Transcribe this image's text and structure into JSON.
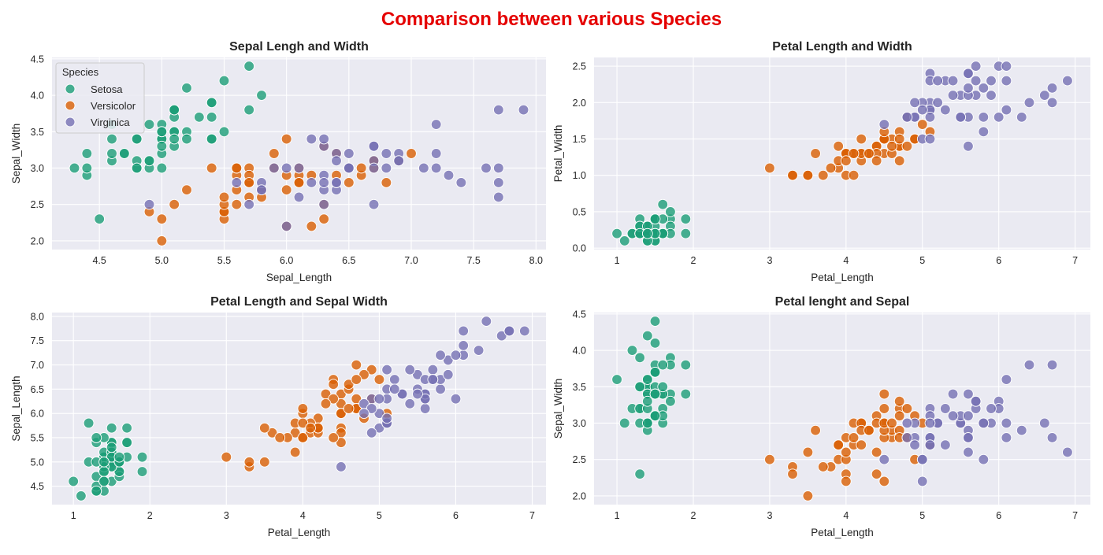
{
  "figure": {
    "title": "Comparison between various Species",
    "title_color": "#e50000",
    "background": "#ffffff",
    "axes_facecolor": "#eaeaf2",
    "grid_color": "#ffffff",
    "species": [
      "Setosa",
      "Versicolor",
      "Virginica"
    ],
    "species_colors": {
      "Setosa": "#1b9e77",
      "Versicolor": "#d95f02",
      "Virginica": "#7570b3"
    },
    "legend_title": "Species"
  },
  "chart_data": [
    {
      "type": "scatter",
      "title": "Sepal Lengh and Width",
      "xlabel": "Sepal_Length",
      "ylabel": "Sepal_Width",
      "x_field": "sl",
      "y_field": "sw",
      "xlim": [
        4.12,
        8.08
      ],
      "ylim": [
        1.88,
        4.52
      ],
      "xticks": [
        "4.5",
        "5.0",
        "5.5",
        "6.0",
        "6.5",
        "7.0",
        "7.5",
        "8.0"
      ],
      "yticks": [
        "2.0",
        "2.5",
        "3.0",
        "3.5",
        "4.0",
        "4.5"
      ],
      "legend": true,
      "legend_position": "upper-left",
      "grid": true
    },
    {
      "type": "scatter",
      "title": "Petal Length and Width",
      "xlabel": "Petal_Length",
      "ylabel": "Petal_Width",
      "x_field": "pl",
      "y_field": "pw",
      "xlim": [
        0.7,
        7.2
      ],
      "ylim": [
        -0.02,
        2.62
      ],
      "xticks": [
        "1",
        "2",
        "3",
        "4",
        "5",
        "6",
        "7"
      ],
      "yticks": [
        "0.0",
        "0.5",
        "1.0",
        "1.5",
        "2.0",
        "2.5"
      ],
      "legend": false,
      "grid": true
    },
    {
      "type": "scatter",
      "title": "Petal Length and Sepal Width",
      "xlabel": "Petal_Length",
      "ylabel": "Sepal_Length",
      "x_field": "pl",
      "y_field": "sl",
      "xlim": [
        0.72,
        7.18
      ],
      "ylim": [
        4.12,
        8.08
      ],
      "xticks": [
        "1",
        "2",
        "3",
        "4",
        "5",
        "6",
        "7"
      ],
      "yticks": [
        "4.5",
        "5.0",
        "5.5",
        "6.0",
        "6.5",
        "7.0",
        "7.5",
        "8.0"
      ],
      "legend": false,
      "grid": true
    },
    {
      "type": "scatter",
      "title": "Petal lenght and Sepal",
      "xlabel": "Petal_Length",
      "ylabel": "Sepal_Width",
      "x_field": "pl",
      "y_field": "sw",
      "xlim": [
        0.7,
        7.2
      ],
      "ylim": [
        1.88,
        4.52
      ],
      "xticks": [
        "1",
        "2",
        "3",
        "4",
        "5",
        "6",
        "7"
      ],
      "yticks": [
        "2.0",
        "2.5",
        "3.0",
        "3.5",
        "4.0",
        "4.5"
      ],
      "legend": false,
      "grid": true
    }
  ],
  "iris": {
    "fields": [
      "sl",
      "sw",
      "pl",
      "pw"
    ],
    "Setosa": [
      [
        5.1,
        3.5,
        1.4,
        0.2
      ],
      [
        4.9,
        3.0,
        1.4,
        0.2
      ],
      [
        4.7,
        3.2,
        1.3,
        0.2
      ],
      [
        4.6,
        3.1,
        1.5,
        0.2
      ],
      [
        5.0,
        3.6,
        1.4,
        0.2
      ],
      [
        5.4,
        3.9,
        1.7,
        0.4
      ],
      [
        4.6,
        3.4,
        1.4,
        0.3
      ],
      [
        5.0,
        3.4,
        1.5,
        0.2
      ],
      [
        4.4,
        2.9,
        1.4,
        0.2
      ],
      [
        4.9,
        3.1,
        1.5,
        0.1
      ],
      [
        5.4,
        3.7,
        1.5,
        0.2
      ],
      [
        4.8,
        3.4,
        1.6,
        0.2
      ],
      [
        4.8,
        3.0,
        1.4,
        0.1
      ],
      [
        4.3,
        3.0,
        1.1,
        0.1
      ],
      [
        5.8,
        4.0,
        1.2,
        0.2
      ],
      [
        5.7,
        4.4,
        1.5,
        0.4
      ],
      [
        5.4,
        3.9,
        1.3,
        0.4
      ],
      [
        5.1,
        3.5,
        1.4,
        0.3
      ],
      [
        5.7,
        3.8,
        1.7,
        0.3
      ],
      [
        5.1,
        3.8,
        1.5,
        0.3
      ],
      [
        5.4,
        3.4,
        1.7,
        0.2
      ],
      [
        5.1,
        3.7,
        1.5,
        0.4
      ],
      [
        4.6,
        3.6,
        1.0,
        0.2
      ],
      [
        5.1,
        3.3,
        1.7,
        0.5
      ],
      [
        4.8,
        3.4,
        1.9,
        0.2
      ],
      [
        5.0,
        3.0,
        1.6,
        0.2
      ],
      [
        5.0,
        3.4,
        1.6,
        0.4
      ],
      [
        5.2,
        3.5,
        1.5,
        0.2
      ],
      [
        5.2,
        3.4,
        1.4,
        0.2
      ],
      [
        4.7,
        3.2,
        1.6,
        0.2
      ],
      [
        4.8,
        3.1,
        1.6,
        0.2
      ],
      [
        5.4,
        3.4,
        1.5,
        0.4
      ],
      [
        5.2,
        4.1,
        1.5,
        0.1
      ],
      [
        5.5,
        4.2,
        1.4,
        0.2
      ],
      [
        4.9,
        3.1,
        1.5,
        0.2
      ],
      [
        5.0,
        3.2,
        1.2,
        0.2
      ],
      [
        5.5,
        3.5,
        1.3,
        0.2
      ],
      [
        4.9,
        3.6,
        1.4,
        0.1
      ],
      [
        4.4,
        3.0,
        1.3,
        0.2
      ],
      [
        5.1,
        3.4,
        1.5,
        0.2
      ],
      [
        5.0,
        3.5,
        1.3,
        0.3
      ],
      [
        4.5,
        2.3,
        1.3,
        0.3
      ],
      [
        4.4,
        3.2,
        1.3,
        0.2
      ],
      [
        5.0,
        3.5,
        1.6,
        0.6
      ],
      [
        5.1,
        3.8,
        1.9,
        0.4
      ],
      [
        4.8,
        3.0,
        1.4,
        0.3
      ],
      [
        5.1,
        3.8,
        1.6,
        0.2
      ],
      [
        4.6,
        3.2,
        1.4,
        0.2
      ],
      [
        5.3,
        3.7,
        1.5,
        0.2
      ],
      [
        5.0,
        3.3,
        1.4,
        0.2
      ]
    ],
    "Versicolor": [
      [
        7.0,
        3.2,
        4.7,
        1.4
      ],
      [
        6.4,
        3.2,
        4.5,
        1.5
      ],
      [
        6.9,
        3.1,
        4.9,
        1.5
      ],
      [
        5.5,
        2.3,
        4.0,
        1.3
      ],
      [
        6.5,
        2.8,
        4.6,
        1.5
      ],
      [
        5.7,
        2.8,
        4.5,
        1.3
      ],
      [
        6.3,
        3.3,
        4.7,
        1.6
      ],
      [
        4.9,
        2.4,
        3.3,
        1.0
      ],
      [
        6.6,
        2.9,
        4.6,
        1.3
      ],
      [
        5.2,
        2.7,
        3.9,
        1.4
      ],
      [
        5.0,
        2.0,
        3.5,
        1.0
      ],
      [
        5.9,
        3.0,
        4.2,
        1.5
      ],
      [
        6.0,
        2.2,
        4.0,
        1.0
      ],
      [
        6.1,
        2.9,
        4.7,
        1.4
      ],
      [
        5.6,
        2.9,
        3.6,
        1.3
      ],
      [
        6.7,
        3.1,
        4.4,
        1.4
      ],
      [
        5.6,
        3.0,
        4.5,
        1.5
      ],
      [
        5.8,
        2.7,
        4.1,
        1.0
      ],
      [
        6.2,
        2.2,
        4.5,
        1.5
      ],
      [
        5.6,
        2.5,
        3.9,
        1.1
      ],
      [
        5.9,
        3.2,
        4.8,
        1.8
      ],
      [
        6.1,
        2.8,
        4.0,
        1.3
      ],
      [
        6.3,
        2.5,
        4.9,
        1.5
      ],
      [
        6.1,
        2.8,
        4.7,
        1.2
      ],
      [
        6.4,
        2.9,
        4.3,
        1.3
      ],
      [
        6.6,
        3.0,
        4.4,
        1.4
      ],
      [
        6.8,
        2.8,
        4.8,
        1.4
      ],
      [
        6.7,
        3.0,
        5.0,
        1.7
      ],
      [
        6.0,
        2.9,
        4.5,
        1.5
      ],
      [
        5.7,
        2.6,
        3.5,
        1.0
      ],
      [
        5.5,
        2.4,
        3.8,
        1.1
      ],
      [
        5.5,
        2.4,
        3.7,
        1.0
      ],
      [
        5.8,
        2.7,
        3.9,
        1.2
      ],
      [
        6.0,
        2.7,
        5.1,
        1.6
      ],
      [
        5.4,
        3.0,
        4.5,
        1.5
      ],
      [
        6.0,
        3.4,
        4.5,
        1.6
      ],
      [
        6.7,
        3.1,
        4.7,
        1.5
      ],
      [
        6.3,
        2.3,
        4.4,
        1.3
      ],
      [
        5.6,
        3.0,
        4.1,
        1.3
      ],
      [
        5.5,
        2.5,
        4.0,
        1.3
      ],
      [
        5.5,
        2.6,
        4.4,
        1.2
      ],
      [
        6.1,
        3.0,
        4.6,
        1.4
      ],
      [
        5.8,
        2.6,
        4.0,
        1.2
      ],
      [
        5.0,
        2.3,
        3.3,
        1.0
      ],
      [
        5.6,
        2.7,
        4.2,
        1.3
      ],
      [
        5.7,
        3.0,
        4.2,
        1.2
      ],
      [
        5.7,
        2.9,
        4.2,
        1.3
      ],
      [
        6.2,
        2.9,
        4.3,
        1.3
      ],
      [
        5.1,
        2.5,
        3.0,
        1.1
      ],
      [
        5.7,
        2.8,
        4.1,
        1.3
      ]
    ],
    "Virginica": [
      [
        6.3,
        3.3,
        6.0,
        2.5
      ],
      [
        5.8,
        2.7,
        5.1,
        1.9
      ],
      [
        7.1,
        3.0,
        5.9,
        2.1
      ],
      [
        6.3,
        2.9,
        5.6,
        1.8
      ],
      [
        6.5,
        3.0,
        5.8,
        2.2
      ],
      [
        7.6,
        3.0,
        6.6,
        2.1
      ],
      [
        4.9,
        2.5,
        4.5,
        1.7
      ],
      [
        7.3,
        2.9,
        6.3,
        1.8
      ],
      [
        6.7,
        2.5,
        5.8,
        1.8
      ],
      [
        7.2,
        3.6,
        6.1,
        2.5
      ],
      [
        6.5,
        3.2,
        5.1,
        2.0
      ],
      [
        6.4,
        2.7,
        5.3,
        1.9
      ],
      [
        6.8,
        3.0,
        5.5,
        2.1
      ],
      [
        5.7,
        2.5,
        5.0,
        2.0
      ],
      [
        5.8,
        2.8,
        5.1,
        2.4
      ],
      [
        6.4,
        3.2,
        5.3,
        2.3
      ],
      [
        6.5,
        3.0,
        5.5,
        1.8
      ],
      [
        7.7,
        3.8,
        6.7,
        2.2
      ],
      [
        7.7,
        2.6,
        6.9,
        2.3
      ],
      [
        6.0,
        2.2,
        5.0,
        1.5
      ],
      [
        6.9,
        3.2,
        5.7,
        2.3
      ],
      [
        5.6,
        2.8,
        4.9,
        2.0
      ],
      [
        7.7,
        2.8,
        6.7,
        2.0
      ],
      [
        6.3,
        2.7,
        4.9,
        1.8
      ],
      [
        6.7,
        3.3,
        5.7,
        2.1
      ],
      [
        7.2,
        3.2,
        6.0,
        1.8
      ],
      [
        6.2,
        2.8,
        4.8,
        1.8
      ],
      [
        6.1,
        3.0,
        4.9,
        1.8
      ],
      [
        6.4,
        2.8,
        5.6,
        2.1
      ],
      [
        7.2,
        3.0,
        5.8,
        1.6
      ],
      [
        7.4,
        2.8,
        6.1,
        1.9
      ],
      [
        7.9,
        3.8,
        6.4,
        2.0
      ],
      [
        6.4,
        2.8,
        5.6,
        2.2
      ],
      [
        6.3,
        2.8,
        5.1,
        1.5
      ],
      [
        6.1,
        2.6,
        5.6,
        1.4
      ],
      [
        7.7,
        3.0,
        6.1,
        2.3
      ],
      [
        6.3,
        3.4,
        5.6,
        2.4
      ],
      [
        6.4,
        3.1,
        5.5,
        1.8
      ],
      [
        6.0,
        3.0,
        4.8,
        1.8
      ],
      [
        6.9,
        3.1,
        5.4,
        2.1
      ],
      [
        6.7,
        3.1,
        5.6,
        2.4
      ],
      [
        6.9,
        3.1,
        5.1,
        2.3
      ],
      [
        5.8,
        2.7,
        5.1,
        1.9
      ],
      [
        6.8,
        3.2,
        5.9,
        2.3
      ],
      [
        6.7,
        3.3,
        5.7,
        2.5
      ],
      [
        6.7,
        3.0,
        5.2,
        2.3
      ],
      [
        6.3,
        2.5,
        5.0,
        1.9
      ],
      [
        6.5,
        3.0,
        5.2,
        2.0
      ],
      [
        6.2,
        3.4,
        5.4,
        2.3
      ],
      [
        5.9,
        3.0,
        5.1,
        1.8
      ]
    ]
  }
}
